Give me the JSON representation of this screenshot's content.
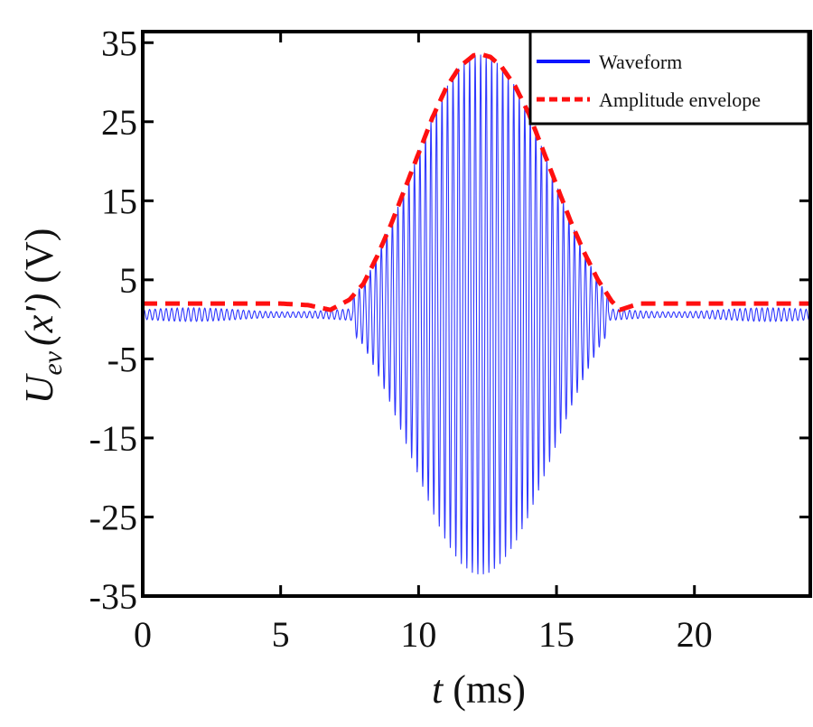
{
  "chart_data": {
    "type": "line",
    "title": "",
    "xlabel": {
      "var": "t",
      "unit": " (ms)"
    },
    "ylabel": {
      "var": "U",
      "sub": "ev",
      "arg": "(x')",
      "unit": " (V)"
    },
    "xlim": [
      0,
      24.2
    ],
    "ylim": [
      -35,
      36.4
    ],
    "xticks": [
      0,
      5,
      10,
      15,
      20
    ],
    "xtick_labels": [
      "0",
      "5",
      "10",
      "15",
      "20"
    ],
    "yticks": [
      35,
      25,
      15,
      5,
      -5,
      -15,
      -25,
      -35
    ],
    "ytick_labels": [
      "35",
      "25",
      "15",
      "5",
      "-5",
      "-15",
      "-25",
      "-35"
    ],
    "grid": false,
    "legend_position": "top-right",
    "series": [
      {
        "name": "Waveform",
        "color": "#0a14ff",
        "style": "solid",
        "offset_v": 0.6,
        "carrier_khz": 5,
        "note_amplitude": "amplitude follows envelope minus offset"
      },
      {
        "name": "Amplitude envelope",
        "color": "#ff1010",
        "style": "dashed",
        "t": [
          0,
          1,
          2,
          3,
          4,
          5,
          6,
          6.8,
          7.5,
          8,
          8.5,
          9,
          9.5,
          10,
          10.5,
          11,
          11.5,
          12,
          12.3,
          12.6,
          13,
          13.5,
          14,
          14.5,
          15,
          15.5,
          16,
          16.5,
          17,
          17.3,
          18,
          19,
          20,
          21,
          22,
          23,
          24.2
        ],
        "values": [
          2,
          2,
          2,
          2,
          2,
          2,
          1.8,
          1.2,
          2.5,
          4.5,
          8,
          12,
          16.5,
          21,
          25.5,
          29.3,
          32,
          33.4,
          33.5,
          33.2,
          32,
          29.5,
          26,
          21.5,
          17,
          12.5,
          8.5,
          5,
          2.3,
          1.2,
          2,
          2,
          2,
          2,
          2,
          2,
          2
        ]
      }
    ]
  }
}
